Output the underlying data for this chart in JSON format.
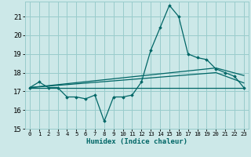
{
  "xlabel": "Humidex (Indice chaleur)",
  "background_color": "#cce8e8",
  "grid_color": "#99cccc",
  "line_color": "#006666",
  "xlim": [
    -0.5,
    23.5
  ],
  "ylim": [
    15,
    21.8
  ],
  "yticks": [
    15,
    16,
    17,
    18,
    19,
    20,
    21
  ],
  "xticks": [
    0,
    1,
    2,
    3,
    4,
    5,
    6,
    7,
    8,
    9,
    10,
    11,
    12,
    13,
    14,
    15,
    16,
    17,
    18,
    19,
    20,
    21,
    22,
    23
  ],
  "series1_x": [
    0,
    1,
    2,
    3,
    4,
    5,
    6,
    7,
    8,
    9,
    10,
    11,
    12,
    13,
    14,
    15,
    16,
    17,
    18,
    19,
    20,
    21,
    22,
    23
  ],
  "series1_y": [
    17.2,
    17.5,
    17.2,
    17.2,
    16.7,
    16.7,
    16.6,
    16.8,
    15.4,
    16.7,
    16.7,
    16.8,
    17.5,
    19.2,
    20.4,
    21.6,
    21.0,
    19.0,
    18.8,
    18.7,
    18.2,
    18.0,
    17.8,
    17.2
  ],
  "series2_x": [
    0,
    23
  ],
  "series2_y": [
    17.2,
    17.2
  ],
  "series3_x": [
    0,
    20,
    23
  ],
  "series3_y": [
    17.2,
    18.25,
    17.85
  ],
  "series4_x": [
    0,
    20,
    23
  ],
  "series4_y": [
    17.2,
    18.0,
    17.45
  ]
}
